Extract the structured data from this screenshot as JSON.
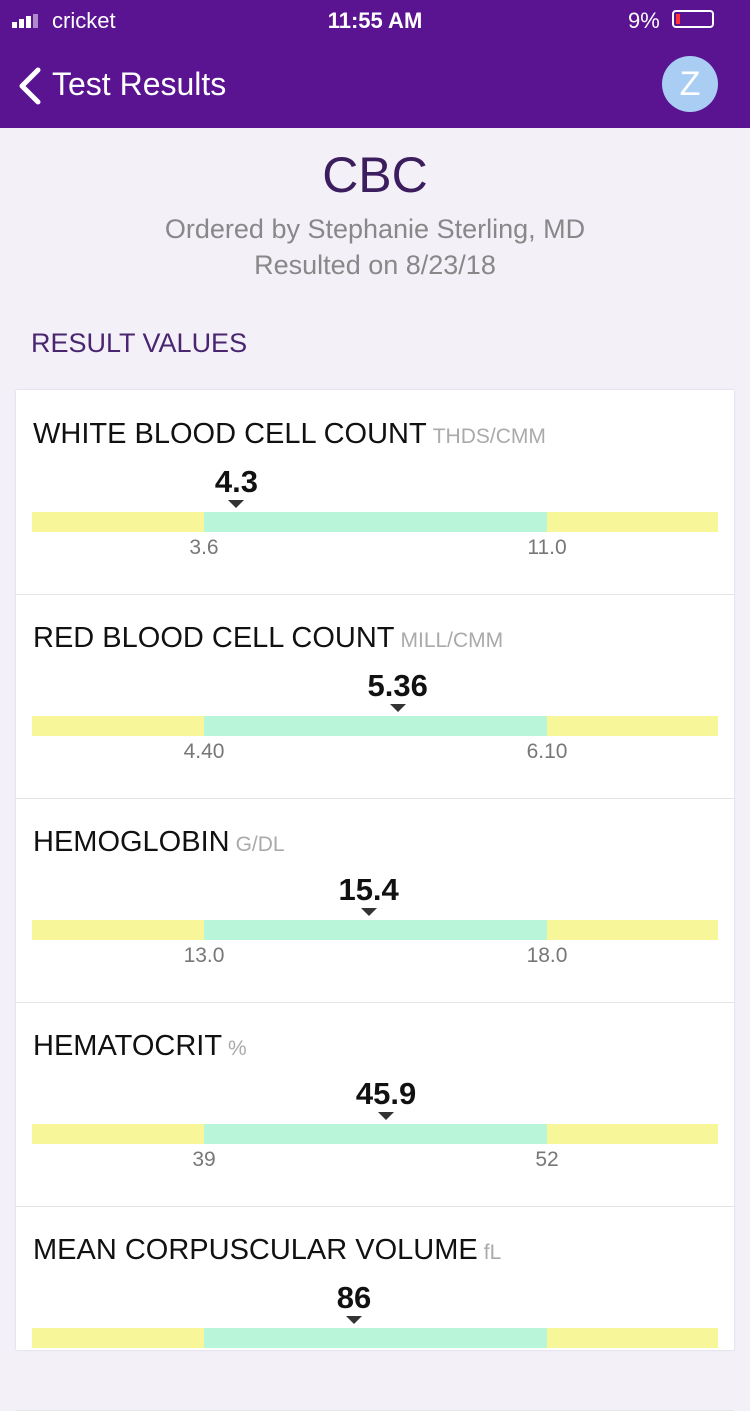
{
  "status_bar": {
    "carrier": "cricket",
    "time": "11:55 AM",
    "battery": "9%"
  },
  "nav": {
    "back_label": "Test Results",
    "avatar": "Z"
  },
  "header": {
    "title": "CBC",
    "ordered_by": "Ordered by Stephanie Sterling, MD",
    "resulted": "Resulted on 8/23/18"
  },
  "section_title": "RESULT VALUES",
  "results": [
    {
      "name": "WHITE BLOOD CELL COUNT",
      "unit": "THDS/CMM",
      "value": "4.3",
      "low": "3.6",
      "high": "11.0"
    },
    {
      "name": "RED BLOOD CELL COUNT",
      "unit": "MILL/CMM",
      "value": "5.36",
      "low": "4.40",
      "high": "6.10"
    },
    {
      "name": "HEMOGLOBIN",
      "unit": "G/DL",
      "value": "15.4",
      "low": "13.0",
      "high": "18.0"
    },
    {
      "name": "HEMATOCRIT",
      "unit": "%",
      "value": "45.9",
      "low": "39",
      "high": "52"
    },
    {
      "name": "MEAN CORPUSCULAR VOLUME",
      "unit": "fL",
      "value": "86"
    }
  ]
}
